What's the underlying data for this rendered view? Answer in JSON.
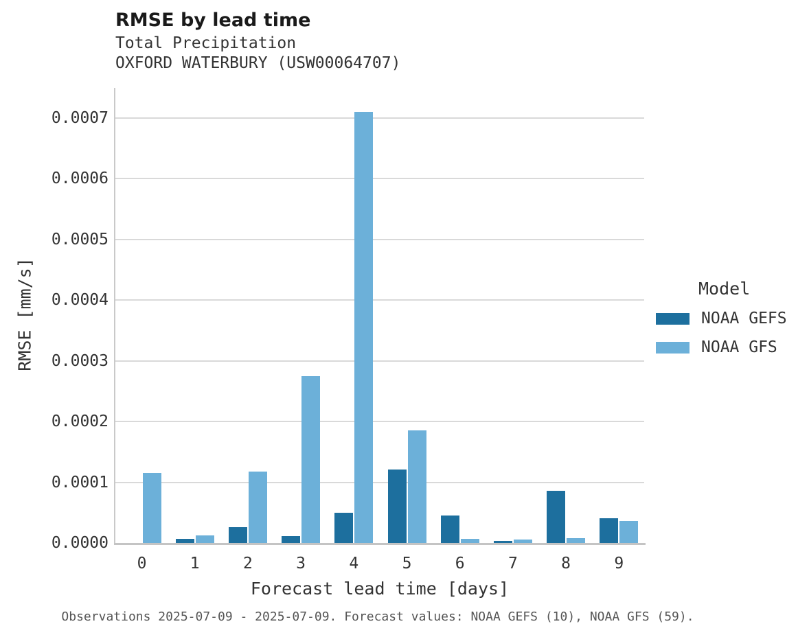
{
  "header": {
    "title": "RMSE by lead time",
    "subtitle_line1": "Total Precipitation",
    "subtitle_line2": "OXFORD WATERBURY (USW00064707)"
  },
  "caption": "Observations 2025-07-09 - 2025-07-09. Forecast values: NOAA GEFS (10), NOAA GFS (59).",
  "chart_data": {
    "type": "bar",
    "title": "RMSE by lead time",
    "subtitle": [
      "Total Precipitation",
      "OXFORD WATERBURY (USW00064707)"
    ],
    "xlabel": "Forecast lead time [days]",
    "ylabel": "RMSE [mm/s]",
    "categories": [
      "0",
      "1",
      "2",
      "3",
      "4",
      "5",
      "6",
      "7",
      "8",
      "9"
    ],
    "series": [
      {
        "name": "NOAA GEFS",
        "color": "#1d6f9e",
        "values": [
          0,
          6.5e-06,
          2.65e-05,
          1.15e-05,
          4.95e-05,
          0.000121,
          4.55e-05,
          3.5e-06,
          8.55e-05,
          4.05e-05
        ]
      },
      {
        "name": "NOAA GFS",
        "color": "#6cb0d9",
        "values": [
          0.000115,
          1.25e-05,
          0.000118,
          0.000275,
          0.00071,
          0.000185,
          6.5e-06,
          5.5e-06,
          7.5e-06,
          3.6e-05
        ]
      }
    ],
    "ylim": [
      0,
      0.00072
    ],
    "ytick_labels": [
      "0.0000",
      "0.0001",
      "0.0002",
      "0.0003",
      "0.0004",
      "0.0005",
      "0.0006",
      "0.0007"
    ],
    "grid": "horizontal",
    "legend_title": "Model",
    "legend_position": "right"
  }
}
